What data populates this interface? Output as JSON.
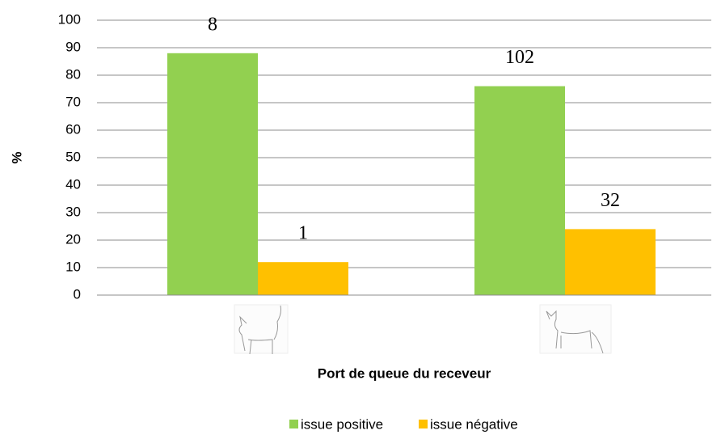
{
  "chart_data": {
    "type": "bar",
    "y_label": "%",
    "x_label": "Port de queue du receveur",
    "categories": [
      null,
      null
    ],
    "series": [
      {
        "name": "issue positive",
        "color": "#92d050",
        "values": [
          88,
          76
        ],
        "counts": [
          8,
          102
        ]
      },
      {
        "name": "issue négative",
        "color": "#ffc000",
        "values": [
          12,
          24
        ],
        "counts": [
          1,
          32
        ]
      }
    ],
    "ylim": [
      0,
      100
    ],
    "yticks": [
      0,
      10,
      20,
      30,
      40,
      50,
      60,
      70,
      80,
      90,
      100
    ],
    "grid": true,
    "legend": "bottom"
  }
}
